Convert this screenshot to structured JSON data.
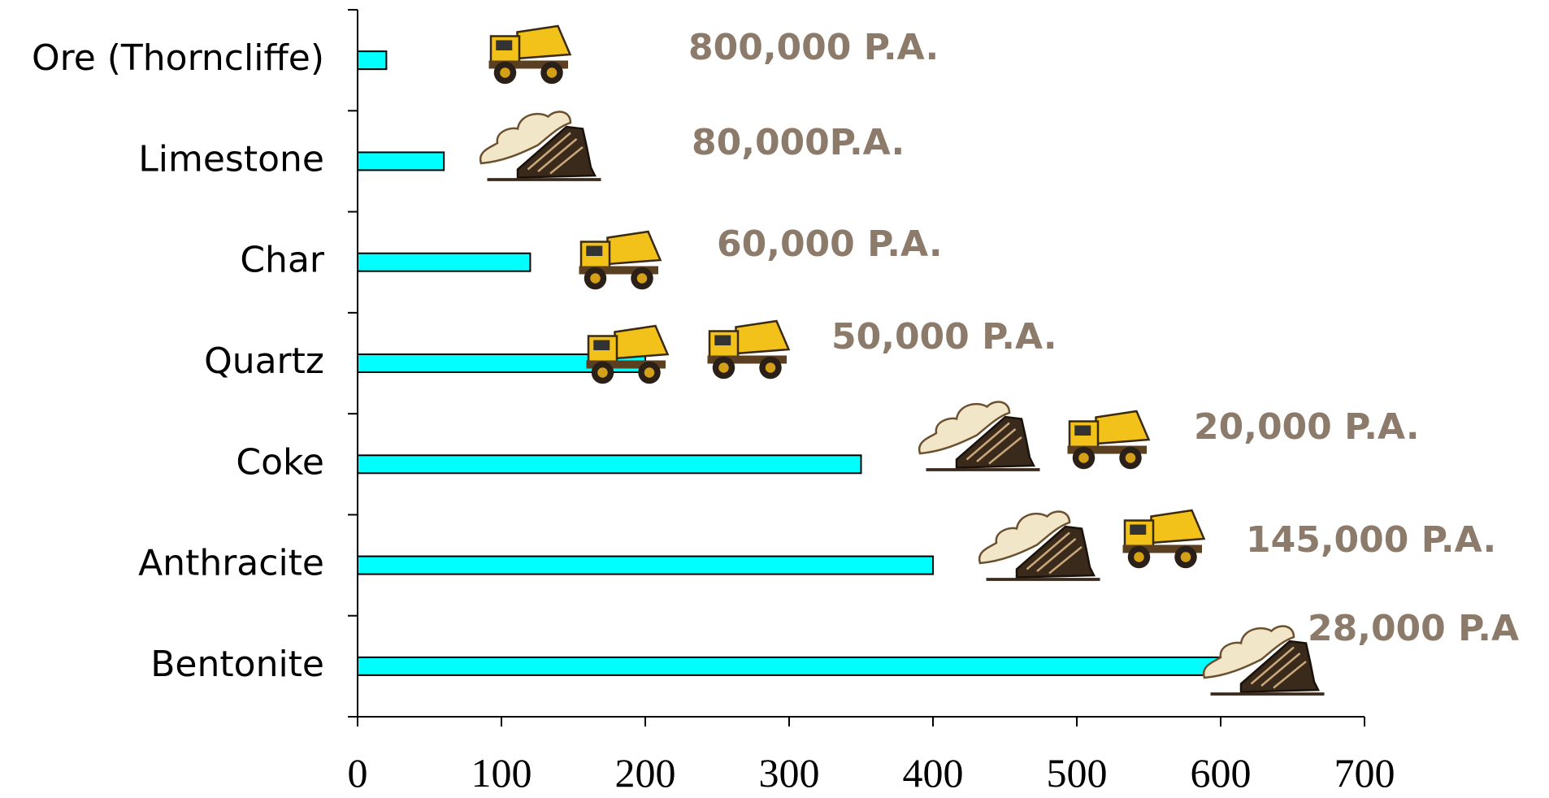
{
  "chart_data": {
    "type": "bar",
    "orientation": "horizontal",
    "categories": [
      "Ore (Thorncliffe)",
      "Limestone",
      "Char",
      "Quartz",
      "Coke",
      "Anthracite",
      "Bentonite"
    ],
    "values": [
      20,
      60,
      120,
      200,
      350,
      400,
      600
    ],
    "color": "#00ffff",
    "xlim": [
      0,
      700
    ],
    "xticks": [
      0,
      100,
      200,
      300,
      400,
      500,
      600,
      700
    ],
    "annotations": [
      "800,000 P.A.",
      "80,000P.A.",
      "60,000 P.A.",
      "50,000 P.A.",
      "20,000 P.A.",
      "145,000 P.A.",
      "28,000 P.A"
    ]
  }
}
